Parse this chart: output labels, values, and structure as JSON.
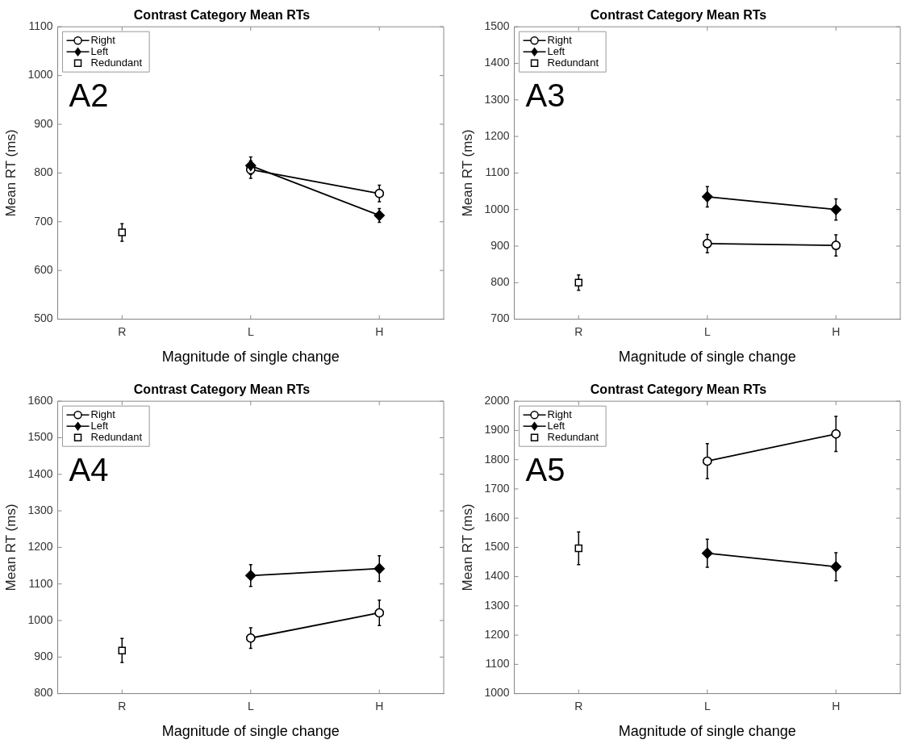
{
  "chart_data": [
    {
      "type": "line",
      "title": "Contrast Category Mean RTs",
      "xlabel": "Magnitude of single change",
      "ylabel": "Mean RT (ms)",
      "annotations": [
        "A2"
      ],
      "categories": [
        "R",
        "L",
        "H"
      ],
      "ylim": [
        500,
        1100
      ],
      "yticks": [
        500,
        600,
        700,
        800,
        900,
        1000,
        1100
      ],
      "grid": false,
      "legend": "top left",
      "series": [
        {
          "name": "Right",
          "color": "#000000",
          "marker": "circle",
          "values": [
            null,
            807,
            758
          ],
          "errors": [
            null,
            18,
            17
          ]
        },
        {
          "name": "Left",
          "color": "#000000",
          "marker": "diamond",
          "values": [
            null,
            815,
            713
          ],
          "errors": [
            null,
            18,
            14
          ]
        },
        {
          "name": "Redundant",
          "type": "scatter",
          "color": "#000000",
          "marker": "square",
          "values": [
            678,
            null,
            null
          ],
          "errors": [
            18,
            null,
            null
          ]
        }
      ]
    },
    {
      "type": "line",
      "title": "Contrast Category Mean RTs",
      "xlabel": "Magnitude of single change",
      "ylabel": "Mean RT (ms)",
      "annotations": [
        "A3"
      ],
      "categories": [
        "R",
        "L",
        "H"
      ],
      "ylim": [
        700,
        1500
      ],
      "yticks": [
        700,
        800,
        900,
        1000,
        1100,
        1200,
        1300,
        1400,
        1500
      ],
      "grid": false,
      "legend": "top left",
      "series": [
        {
          "name": "Right",
          "color": "#000000",
          "marker": "circle",
          "values": [
            null,
            907,
            902
          ],
          "errors": [
            null,
            25,
            29
          ]
        },
        {
          "name": "Left",
          "color": "#000000",
          "marker": "diamond",
          "values": [
            null,
            1035,
            1000
          ],
          "errors": [
            null,
            28,
            29
          ]
        },
        {
          "name": "Redundant",
          "type": "scatter",
          "color": "#000000",
          "marker": "square",
          "values": [
            800,
            null,
            null
          ],
          "errors": [
            21,
            null,
            null
          ]
        }
      ]
    },
    {
      "type": "line",
      "title": "Contrast Category Mean RTs",
      "xlabel": "Magnitude of single change",
      "ylabel": "Mean RT (ms)",
      "annotations": [
        "A4"
      ],
      "categories": [
        "R",
        "L",
        "H"
      ],
      "ylim": [
        800,
        1600
      ],
      "yticks": [
        800,
        900,
        1000,
        1100,
        1200,
        1300,
        1400,
        1500,
        1600
      ],
      "grid": false,
      "legend": "top left",
      "series": [
        {
          "name": "Right",
          "color": "#000000",
          "marker": "circle",
          "values": [
            null,
            952,
            1021
          ],
          "errors": [
            null,
            28,
            35
          ]
        },
        {
          "name": "Left",
          "color": "#000000",
          "marker": "diamond",
          "values": [
            null,
            1123,
            1142
          ],
          "errors": [
            null,
            30,
            35
          ]
        },
        {
          "name": "Redundant",
          "type": "scatter",
          "color": "#000000",
          "marker": "square",
          "values": [
            918,
            null,
            null
          ],
          "errors": [
            33,
            null,
            null
          ]
        }
      ]
    },
    {
      "type": "line",
      "title": "Contrast Category Mean RTs",
      "xlabel": "Magnitude of single change",
      "ylabel": "Mean RT (ms)",
      "annotations": [
        "A5"
      ],
      "categories": [
        "R",
        "L",
        "H"
      ],
      "ylim": [
        1000,
        2000
      ],
      "yticks": [
        1000,
        1100,
        1200,
        1300,
        1400,
        1500,
        1600,
        1700,
        1800,
        1900,
        2000
      ],
      "grid": false,
      "legend": "top left",
      "series": [
        {
          "name": "Right",
          "color": "#000000",
          "marker": "circle",
          "values": [
            null,
            1795,
            1888
          ],
          "errors": [
            null,
            60,
            60
          ]
        },
        {
          "name": "Left",
          "color": "#000000",
          "marker": "diamond",
          "values": [
            null,
            1480,
            1434
          ],
          "errors": [
            null,
            48,
            48
          ]
        },
        {
          "name": "Redundant",
          "type": "scatter",
          "color": "#000000",
          "marker": "square",
          "values": [
            1497,
            null,
            null
          ],
          "errors": [
            56,
            null,
            null
          ]
        }
      ]
    }
  ]
}
